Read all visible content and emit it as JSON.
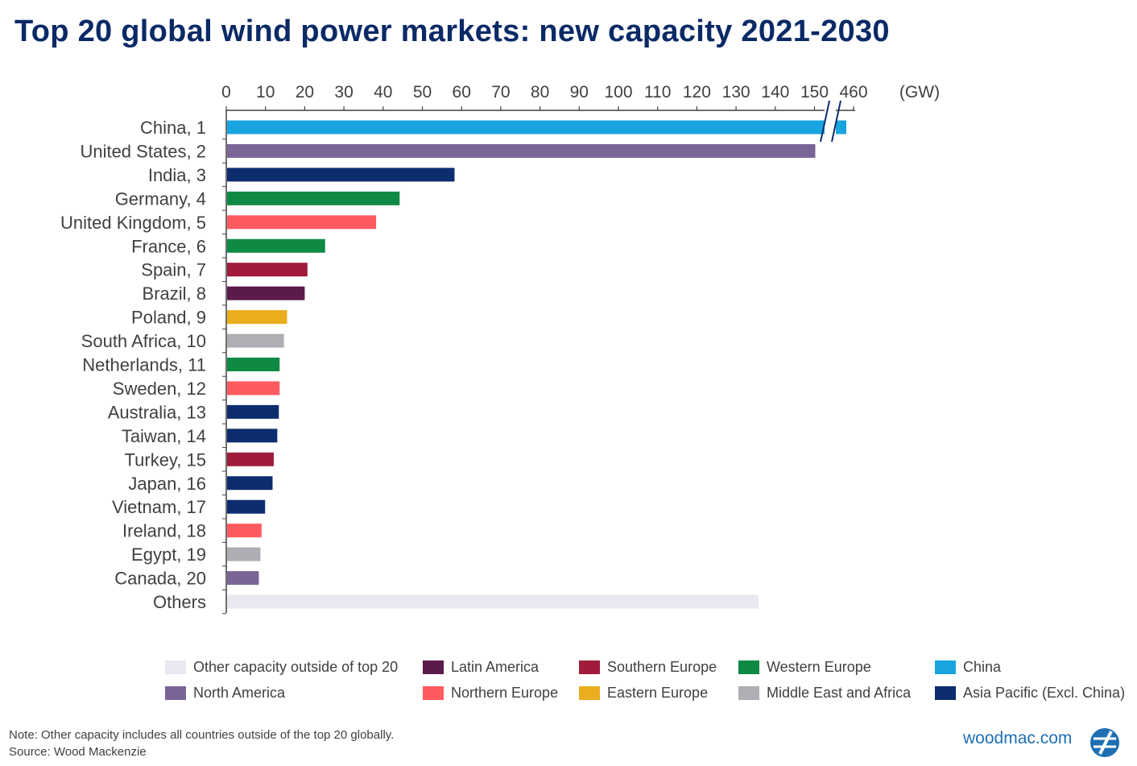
{
  "title": "Top 20 global wind power markets: new capacity 2021-2030",
  "chart_data": {
    "type": "bar",
    "orientation": "horizontal",
    "title": "Top 20 global wind power markets: new capacity 2021-2030",
    "unit_label": "(GW)",
    "xlim": [
      0,
      160
    ],
    "axis_break": {
      "after": 150,
      "label": "460"
    },
    "x_ticks": [
      "0",
      "10",
      "20",
      "30",
      "40",
      "50",
      "60",
      "70",
      "80",
      "90",
      "100",
      "110",
      "120",
      "130",
      "140",
      "150",
      "460"
    ],
    "categories": [
      "China, 1",
      "United States, 2",
      "India, 3",
      "Germany, 4",
      "United Kingdom, 5",
      "France, 6",
      "Spain, 7",
      "Brazil, 8",
      "Poland, 9",
      "South Africa, 10",
      "Netherlands, 11",
      "Sweden, 12",
      "Australia, 13",
      "Taiwan, 14",
      "Turkey, 15",
      "Japan, 16",
      "Vietnam, 17",
      "Ireland, 18",
      "Egypt, 19",
      "Canada, 20",
      "Others"
    ],
    "values": [
      460,
      150,
      58,
      44,
      38,
      25,
      20.5,
      19.8,
      15.3,
      14.5,
      13.4,
      13.4,
      13.2,
      12.8,
      11.9,
      11.6,
      9.7,
      8.8,
      8.5,
      8.1,
      135.5
    ],
    "regions": [
      "China",
      "North America",
      "Asia Pacific (Excl. China)",
      "Western Europe",
      "Northern Europe",
      "Western Europe",
      "Southern Europe",
      "Latin America",
      "Eastern Europe",
      "Middle East and Africa",
      "Western Europe",
      "Northern Europe",
      "Asia Pacific (Excl. China)",
      "Asia Pacific (Excl. China)",
      "Southern Europe",
      "Asia Pacific (Excl. China)",
      "Asia Pacific (Excl. China)",
      "Northern Europe",
      "Middle East and Africa",
      "North America",
      "Other capacity outside of top 20"
    ],
    "legend": [
      {
        "name": "Other capacity outside of top 20",
        "color": "#e8e8f0"
      },
      {
        "name": "Latin America",
        "color": "#5a1a4a"
      },
      {
        "name": "Southern Europe",
        "color": "#a01c3a"
      },
      {
        "name": "Western Europe",
        "color": "#0f8a45"
      },
      {
        "name": "China",
        "color": "#18a4e0"
      },
      {
        "name": "North America",
        "color": "#7b6496"
      },
      {
        "name": "Northern Europe",
        "color": "#ff5a5f"
      },
      {
        "name": "Eastern Europe",
        "color": "#eaad1e"
      },
      {
        "name": "Middle East and Africa",
        "color": "#aeaeb4"
      },
      {
        "name": "Asia Pacific (Excl. China)",
        "color": "#0c2d6e"
      }
    ]
  },
  "note": "Note: Other capacity includes all countries outside of the top 20 globally.",
  "source": "Source: Wood Mackenzie",
  "brand": "woodmac.com"
}
